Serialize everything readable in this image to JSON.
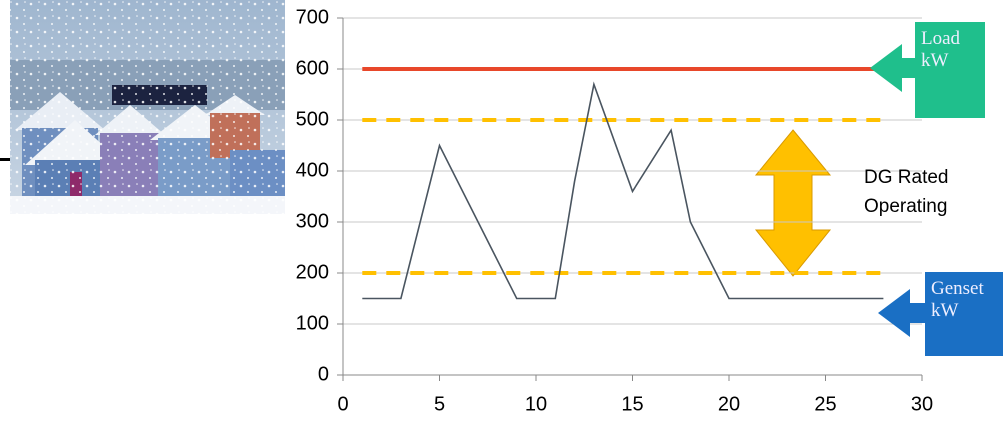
{
  "chart_data": {
    "type": "line",
    "xlim": [
      0,
      30
    ],
    "xticks": [
      0,
      5,
      10,
      15,
      20,
      25,
      30
    ],
    "ylim": [
      0,
      700
    ],
    "yticks": [
      0,
      100,
      200,
      300,
      400,
      500,
      600,
      700
    ],
    "grid": true,
    "series": [
      {
        "name": "Load kW",
        "color": "#e8472a",
        "box_color": "#1fbf8c",
        "x": [
          1,
          28
        ],
        "values": [
          600,
          600
        ]
      },
      {
        "name": "Genset kW",
        "color": "#4a5560",
        "box_color": "#1a6fc4",
        "x": [
          1,
          3,
          5,
          9,
          11,
          12,
          13,
          15,
          17,
          18,
          20,
          28
        ],
        "values": [
          150,
          150,
          450,
          150,
          150,
          380,
          570,
          360,
          480,
          300,
          150,
          150
        ]
      }
    ],
    "limits": {
      "label": [
        "DG Rated",
        "Operating"
      ],
      "values": [
        500,
        200
      ],
      "x": [
        1,
        28
      ],
      "color": "#ffc000"
    }
  }
}
